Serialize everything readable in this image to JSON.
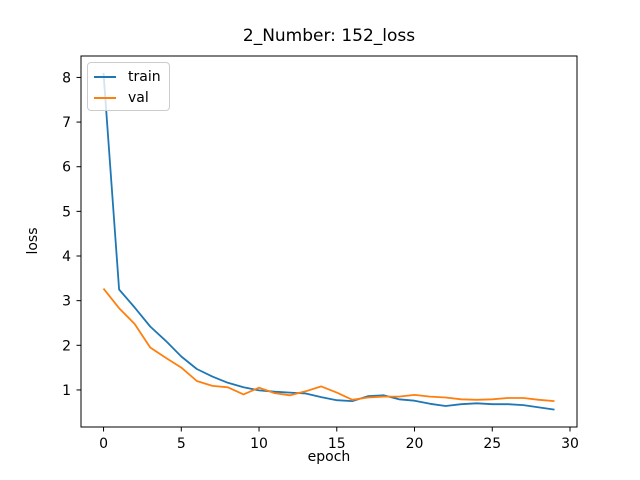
{
  "figure": {
    "title": "2_Number: 152_loss",
    "xlabel": "epoch",
    "ylabel": "loss",
    "background_color": "#ffffff",
    "spine_color": "#000000"
  },
  "legend": {
    "position": "upper left",
    "entries": [
      {
        "label": "train",
        "color": "#1f77b4"
      },
      {
        "label": "val",
        "color": "#ff7f0e"
      }
    ]
  },
  "chart_data": {
    "type": "line",
    "title": "2_Number: 152_loss",
    "xlabel": "epoch",
    "ylabel": "loss",
    "x": [
      0,
      1,
      2,
      3,
      4,
      5,
      6,
      7,
      8,
      9,
      10,
      11,
      12,
      13,
      14,
      15,
      16,
      17,
      18,
      19,
      20,
      21,
      22,
      23,
      24,
      25,
      26,
      27,
      28,
      29
    ],
    "series": [
      {
        "name": "train",
        "color": "#1f77b4",
        "values": [
          8.1,
          3.25,
          2.85,
          2.42,
          2.1,
          1.75,
          1.47,
          1.3,
          1.16,
          1.06,
          0.99,
          0.96,
          0.94,
          0.92,
          0.84,
          0.77,
          0.75,
          0.86,
          0.88,
          0.79,
          0.76,
          0.69,
          0.64,
          0.68,
          0.7,
          0.68,
          0.68,
          0.66,
          0.61,
          0.56
        ]
      },
      {
        "name": "val",
        "color": "#ff7f0e",
        "values": [
          3.27,
          2.83,
          2.48,
          1.95,
          1.72,
          1.5,
          1.2,
          1.09,
          1.06,
          0.9,
          1.05,
          0.93,
          0.88,
          0.97,
          1.08,
          0.94,
          0.78,
          0.83,
          0.85,
          0.85,
          0.89,
          0.85,
          0.83,
          0.79,
          0.78,
          0.79,
          0.82,
          0.82,
          0.78,
          0.75
        ]
      }
    ],
    "xlim": [
      -1.45,
      30.45
    ],
    "ylim": [
      0.17,
      8.48
    ],
    "xticks": [
      0,
      5,
      10,
      15,
      20,
      25,
      30
    ],
    "yticks": [
      1,
      2,
      3,
      4,
      5,
      6,
      7,
      8
    ],
    "grid": false,
    "legend_position": "upper left"
  }
}
